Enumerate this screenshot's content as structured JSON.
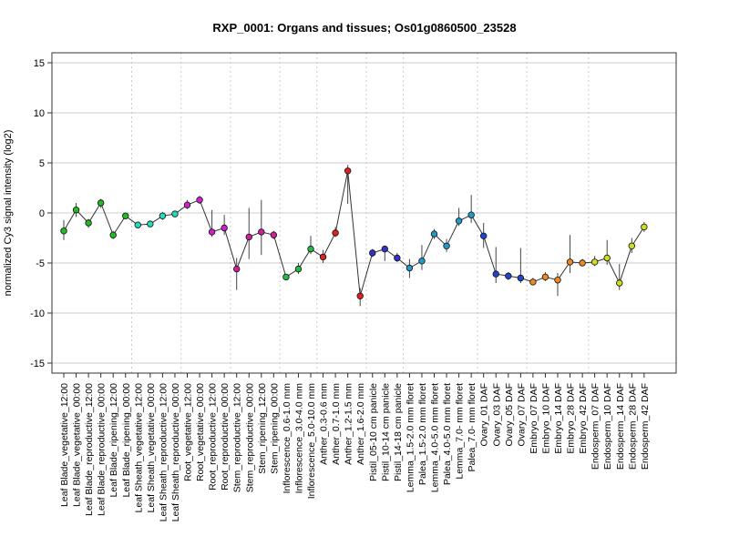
{
  "chart_data": {
    "type": "line",
    "title": "RXP_0001: Organs and tissues; Os01g0860500_23528",
    "ylabel": "normalized Cy3 signal intensity (log2)",
    "xlabel": "",
    "ylim": [
      -16,
      16
    ],
    "yticks": [
      -15,
      -10,
      -5,
      0,
      5,
      10,
      15
    ],
    "grid": "horizontal",
    "categories": [
      "Leaf Blade_vegetative_12:00",
      "Leaf Blade_vegetative_00:00",
      "Leaf Blade_reproductive_12:00",
      "Leaf Blade_reproductive_00:00",
      "Leaf Blade_ripening_12:00",
      "Leaf Blade_ripening_00:00",
      "Leaf Sheath_vegetative_12:00",
      "Leaf Sheath_vegetative_00:00",
      "Leaf Sheath_reproductive_12:00",
      "Leaf Sheath_reproductive_00:00",
      "Root_vegetative_12:00",
      "Root_vegetative_00:00",
      "Root_reproductive_12:00",
      "Root_reproductive_00:00",
      "Stem_reproductive_12:00",
      "Stem_reproductive_00:00",
      "Stem_ripening_12:00",
      "Stem_ripening_00:00",
      "Inflorescence_0.6-1.0 mm",
      "Inflorescence_3.0-4.0 mm",
      "Inflorescence_5.0-10.0 mm",
      "Anther_0.3-0.6 mm",
      "Anther_0.7-1.0 mm",
      "Anther_1.2-1.5 mm",
      "Anther_1.6-2.0 mm",
      "Pistil_05-10 cm panicle",
      "Pistil_10-14 cm panicle",
      "Pistil_14-18 cm panicle",
      "Lemma_1.5-2.0 mm floret",
      "Palea_1.5-2.0 mm floret",
      "Lemma_4.0-5.0 mm floret",
      "Palea_4.0-5.0 mm floret",
      "Lemma_7.0- mm floret",
      "Palea_7.0- mm floret",
      "Ovary_01 DAF",
      "Ovary_03 DAF",
      "Ovary_05 DAF",
      "Ovary_07 DAF",
      "Embryo_07 DAF",
      "Embryo_10 DAF",
      "Embryo_14 DAF",
      "Embryo_28 DAF",
      "Embryo_42 DAF",
      "Endosperm_07 DAF",
      "Endosperm_10 DAF",
      "Endosperm_14 DAF",
      "Endosperm_28 DAF",
      "Endosperm_42 DAF"
    ],
    "values": [
      -1.8,
      0.3,
      -1.0,
      1.0,
      -2.2,
      -0.3,
      -1.2,
      -1.1,
      -0.3,
      -0.1,
      0.8,
      1.3,
      -1.9,
      -1.5,
      -5.6,
      -2.4,
      -1.9,
      -2.2,
      -6.4,
      -5.6,
      -3.6,
      -4.4,
      -2.0,
      4.2,
      -8.3,
      -4.0,
      -3.6,
      -4.5,
      -5.5,
      -4.8,
      -2.1,
      -3.3,
      -0.8,
      -0.2,
      -2.3,
      -6.1,
      -6.3,
      -6.5,
      -6.9,
      -6.4,
      -6.7,
      -4.9,
      -5.0,
      -4.9,
      -4.5,
      -7.0,
      -3.3,
      -1.4
    ],
    "error_low": [
      -2.7,
      -0.4,
      -1.5,
      0.5,
      -2.6,
      -0.6,
      -1.5,
      -1.4,
      -0.7,
      -0.4,
      0.4,
      0.9,
      -2.4,
      -2.2,
      -7.7,
      -4.6,
      -4.2,
      -2.6,
      -6.6,
      -6.1,
      -4.1,
      -5.0,
      -2.4,
      0.9,
      -9.3,
      -4.4,
      -4.8,
      -4.9,
      -6.5,
      -5.7,
      -2.6,
      -3.9,
      -1.3,
      -1.0,
      -3.5,
      -7.0,
      -6.7,
      -7.0,
      -7.2,
      -6.8,
      -8.3,
      -6.0,
      -5.3,
      -5.3,
      -5.2,
      -7.7,
      -4.0,
      -1.9
    ],
    "error_high": [
      -0.7,
      1.0,
      -0.6,
      1.4,
      -1.8,
      -0.1,
      -0.9,
      -0.8,
      0.1,
      0.2,
      1.3,
      1.7,
      0.3,
      -0.2,
      -4.5,
      0.5,
      1.3,
      -1.8,
      -6.1,
      -5.0,
      -2.3,
      -3.7,
      -1.4,
      4.8,
      -7.5,
      -3.6,
      -3.3,
      -4.0,
      -4.6,
      -3.2,
      -1.6,
      -2.6,
      0.5,
      1.8,
      -1.0,
      -3.4,
      -5.9,
      -3.5,
      -6.5,
      -5.9,
      -6.0,
      -2.2,
      -4.6,
      -4.3,
      -2.7,
      -5.1,
      -2.5,
      -0.9
    ],
    "point_colors": [
      "#22bb22",
      "#22bb22",
      "#22bb22",
      "#22bb22",
      "#22bb22",
      "#22bb22",
      "#22ddbb",
      "#22ddbb",
      "#22ddbb",
      "#22ddbb",
      "#cc22cc",
      "#cc22cc",
      "#cc22cc",
      "#cc22cc",
      "#cc2299",
      "#cc2299",
      "#cc2299",
      "#cc2299",
      "#22bb44",
      "#22bb44",
      "#22bb44",
      "#dd2222",
      "#dd2222",
      "#dd2222",
      "#dd2222",
      "#3333cc",
      "#3333cc",
      "#3333cc",
      "#2299cc",
      "#2299cc",
      "#2299cc",
      "#2299cc",
      "#2299cc",
      "#2299cc",
      "#2244cc",
      "#2244cc",
      "#2244cc",
      "#2244cc",
      "#ee8822",
      "#ee8822",
      "#ee8822",
      "#ee8822",
      "#ee8822",
      "#ccdd22",
      "#ccdd22",
      "#ccdd22",
      "#ccdd22",
      "#ccdd22"
    ],
    "group_separators_after": [
      5,
      9,
      13,
      17,
      20,
      24,
      27,
      33,
      37,
      42
    ]
  }
}
